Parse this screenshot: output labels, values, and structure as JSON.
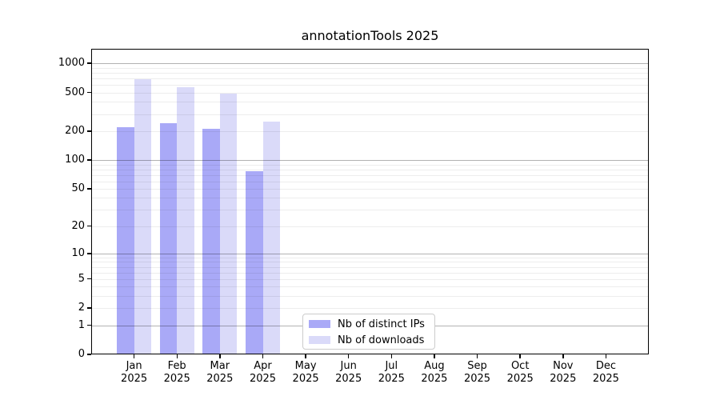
{
  "chart_data": {
    "type": "bar",
    "title": "annotationTools 2025",
    "categories": [
      "Jan",
      "Feb",
      "Mar",
      "Apr",
      "May",
      "Jun",
      "Jul",
      "Aug",
      "Sep",
      "Oct",
      "Nov",
      "Dec"
    ],
    "category_sublabel": "2025",
    "series": [
      {
        "name": "Nb of distinct IPs",
        "color": "#a9a9f7",
        "values": [
          220,
          241,
          212,
          77,
          null,
          null,
          null,
          null,
          null,
          null,
          null,
          null
        ]
      },
      {
        "name": "Nb of downloads",
        "color": "#dadaf9",
        "values": [
          681,
          566,
          488,
          250,
          null,
          null,
          null,
          null,
          null,
          null,
          null,
          null
        ]
      }
    ],
    "y_axis": {
      "scale": "log1p",
      "tick_labels": [
        0,
        1,
        2,
        5,
        10,
        20,
        50,
        100,
        200,
        500,
        1000
      ],
      "major_gridlines": [
        1,
        10,
        100,
        1000
      ],
      "minor_gridline_decades": [
        1,
        10,
        100
      ],
      "max": 1413,
      "grid": true
    },
    "x_axis": {
      "tick_count": 12
    },
    "legend": {
      "position": "lower-center",
      "border_color": "#cccccc"
    }
  }
}
